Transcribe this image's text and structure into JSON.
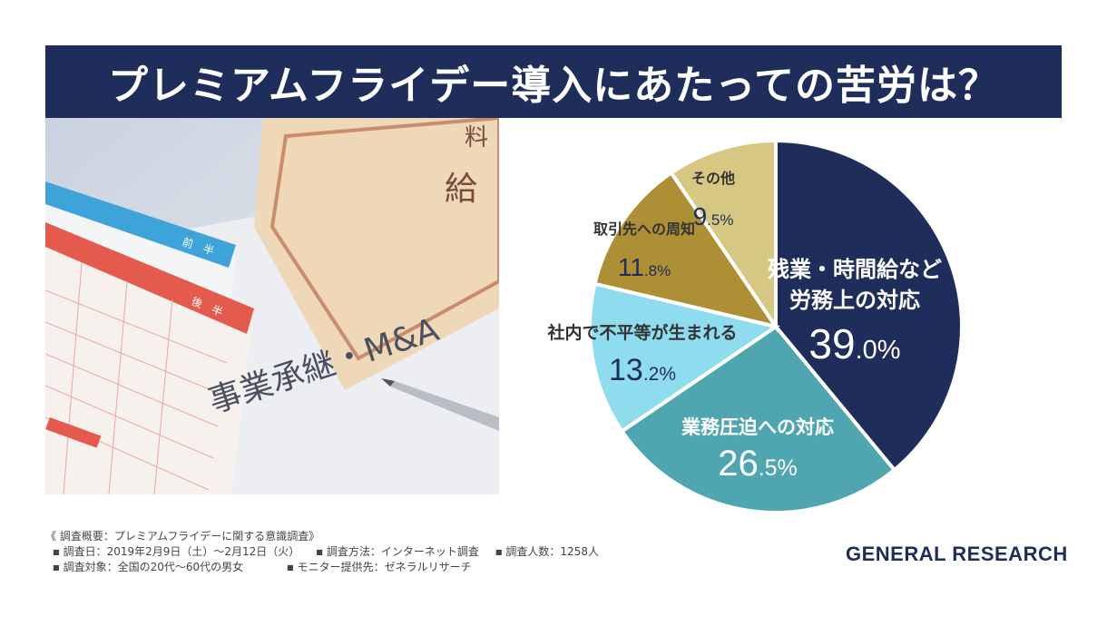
{
  "title": "プレミアムフライデー導入にあたっての苦労は？",
  "photo": {
    "text_main": "事業承継・M&A",
    "tag_blue": "前　半",
    "tag_red": "後　半",
    "envelope_char": "給",
    "envelope_char2": "料"
  },
  "chart_data": {
    "type": "pie",
    "title": "プレミアムフライデー導入にあたっての苦労は？",
    "unit": "%",
    "slices": [
      {
        "label_lines": [
          "残業・時間給など",
          "労務上の対応"
        ],
        "value": 39.0,
        "value_int": "39",
        "value_dec": ".0%",
        "color": "#1f2d5a",
        "label_color": "#ffffff"
      },
      {
        "label_lines": [
          "業務圧迫への対応"
        ],
        "value": 26.5,
        "value_int": "26",
        "value_dec": ".5%",
        "color": "#4fa6b1",
        "label_color": "#ffffff"
      },
      {
        "label_lines": [
          "社内で不平等が生まれる"
        ],
        "value": 13.2,
        "value_int": "13",
        "value_dec": ".2%",
        "color": "#8fdcef",
        "label_color": "#333333"
      },
      {
        "label_lines": [
          "取引先への周知"
        ],
        "value": 11.8,
        "value_int": "11",
        "value_dec": ".8%",
        "color": "#ad8f35",
        "label_color": "#333333"
      },
      {
        "label_lines": [
          "その他"
        ],
        "value": 9.5,
        "value_int": "9",
        "value_dec": ".5%",
        "color": "#d6c883",
        "label_color": "#333333"
      }
    ]
  },
  "survey": {
    "heading": "《 調査概要：プレミアムフライデーに関する意識調査》",
    "items": [
      [
        "調査日：2019年2月9日（土）〜2月12日（火）",
        "調査方法：インターネット調査",
        "調査人数：1258人"
      ],
      [
        "調査対象：全国の20代〜60代の男女",
        "モニター提供先：ゼネラルリサーチ"
      ]
    ]
  },
  "logo": {
    "text": "GENERAL RESEARCH",
    "color": "#1f2d5a"
  }
}
